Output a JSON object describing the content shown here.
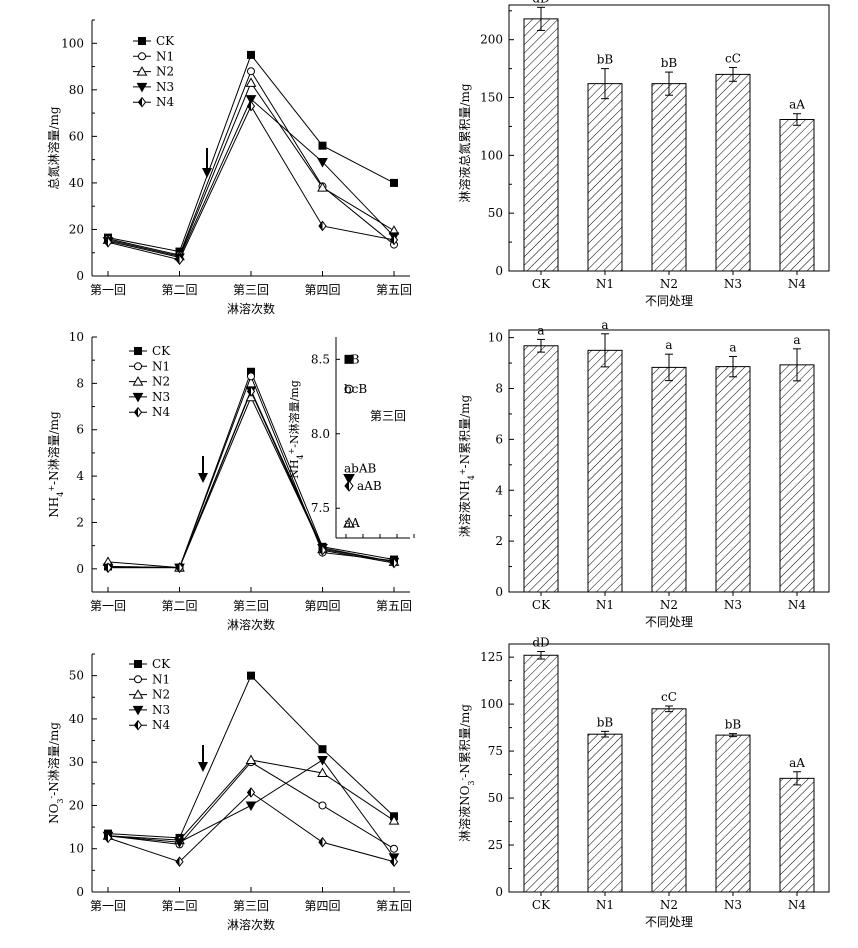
{
  "chart_data": [
    {
      "id": "p1",
      "type": "line",
      "xlabel": "淋溶次数",
      "ylabel": "总氮淋溶量/mg",
      "categories": [
        "第一回",
        "第二回",
        "第三回",
        "第四回",
        "第五回"
      ],
      "ylim": [
        0,
        110
      ],
      "yticks": [
        0,
        20,
        40,
        60,
        80,
        100
      ],
      "series": [
        {
          "name": "CK",
          "marker": "square",
          "values": [
            16.5,
            10.5,
            95,
            56,
            40
          ]
        },
        {
          "name": "N1",
          "marker": "circle",
          "values": [
            16,
            9,
            88,
            38.5,
            13.5
          ]
        },
        {
          "name": "N2",
          "marker": "triangle",
          "values": [
            15.5,
            8.5,
            83,
            38,
            19.5
          ]
        },
        {
          "name": "N3",
          "marker": "triangle-down",
          "values": [
            15,
            8,
            76,
            49,
            17
          ]
        },
        {
          "name": "N4",
          "marker": "diamond",
          "values": [
            14.5,
            7,
            73,
            21.5,
            15.5
          ]
        }
      ],
      "arrow_after_index": 1
    },
    {
      "id": "p2",
      "type": "line",
      "xlabel": "淋溶次数",
      "ylabel": "NH4+-N淋溶量/mg",
      "categories": [
        "第一回",
        "第二回",
        "第三回",
        "第四回",
        "第五回"
      ],
      "ylim": [
        -1,
        10
      ],
      "yticks": [
        0,
        2,
        4,
        6,
        8,
        10
      ],
      "series": [
        {
          "name": "CK",
          "marker": "square",
          "values": [
            0.1,
            0.05,
            8.5,
            0.95,
            0.4
          ]
        },
        {
          "name": "N1",
          "marker": "circle",
          "values": [
            0.1,
            0.05,
            8.3,
            0.7,
            0.35
          ]
        },
        {
          "name": "N2",
          "marker": "triangle",
          "values": [
            0.3,
            0.05,
            7.4,
            0.85,
            0.3
          ]
        },
        {
          "name": "N3",
          "marker": "triangle-down",
          "values": [
            0.05,
            0.05,
            7.7,
            0.9,
            0.3
          ]
        },
        {
          "name": "N4",
          "marker": "diamond",
          "values": [
            0.05,
            0.05,
            7.65,
            0.8,
            0.25
          ]
        }
      ],
      "arrow_after_index": 1,
      "inset": {
        "ylabel": "NH4+-N淋溶量/mg",
        "caption": "第三回",
        "ylim": [
          7.3,
          8.65
        ],
        "yticks": [
          7.5,
          8.0,
          8.5
        ],
        "points": [
          {
            "marker": "square",
            "value": 8.5,
            "label": "cB"
          },
          {
            "marker": "circle",
            "value": 8.3,
            "label": "bcB"
          },
          {
            "marker": "triangle-down",
            "value": 7.7,
            "label": "abAB"
          },
          {
            "marker": "diamond",
            "value": 7.65,
            "label": "aAB"
          },
          {
            "marker": "triangle",
            "value": 7.4,
            "label": "aA"
          }
        ]
      }
    },
    {
      "id": "p3",
      "type": "line",
      "xlabel": "淋溶次数",
      "ylabel": "NO3--N淋溶量/mg",
      "categories": [
        "第一回",
        "第二回",
        "第三回",
        "第四回",
        "第五回"
      ],
      "ylim": [
        0,
        55
      ],
      "yticks": [
        0,
        10,
        20,
        30,
        40,
        50
      ],
      "series": [
        {
          "name": "CK",
          "marker": "square",
          "values": [
            13.5,
            12.5,
            50,
            33,
            17.5
          ]
        },
        {
          "name": "N1",
          "marker": "circle",
          "values": [
            13,
            11,
            30,
            20,
            10
          ]
        },
        {
          "name": "N2",
          "marker": "triangle",
          "values": [
            13,
            12,
            30.5,
            27.5,
            16.5
          ]
        },
        {
          "name": "N3",
          "marker": "triangle-down",
          "values": [
            13,
            11.5,
            20,
            30.5,
            8
          ]
        },
        {
          "name": "N4",
          "marker": "diamond",
          "values": [
            12.5,
            7,
            23,
            11.5,
            7
          ]
        }
      ],
      "arrow_after_index": 1
    },
    {
      "id": "b1",
      "type": "bar",
      "xlabel": "不同处理",
      "ylabel": "淋溶液总氮累积量/mg",
      "categories": [
        "CK",
        "N1",
        "N2",
        "N3",
        "N4"
      ],
      "values": [
        218,
        162,
        162,
        170,
        131
      ],
      "errors": [
        10,
        13,
        10,
        6,
        5
      ],
      "labels": [
        "dD",
        "bB",
        "bB",
        "cC",
        "aA"
      ],
      "ylim": [
        0,
        230
      ],
      "yticks": [
        0,
        50,
        100,
        150,
        200
      ]
    },
    {
      "id": "b2",
      "type": "bar",
      "xlabel": "不同处理",
      "ylabel": "淋溶液NH4+-N累积量/mg",
      "categories": [
        "CK",
        "N1",
        "N2",
        "N3",
        "N4"
      ],
      "values": [
        9.68,
        9.5,
        8.83,
        8.86,
        8.93
      ],
      "errors": [
        0.25,
        0.65,
        0.52,
        0.4,
        0.63
      ],
      "labels": [
        "a",
        "a",
        "a",
        "a",
        "a"
      ],
      "ylim": [
        0,
        10.3
      ],
      "yticks": [
        0,
        2,
        4,
        6,
        8,
        10
      ]
    },
    {
      "id": "b3",
      "type": "bar",
      "xlabel": "不同处理",
      "ylabel": "淋溶液NO3--N累积量/mg",
      "categories": [
        "CK",
        "N1",
        "N2",
        "N3",
        "N4"
      ],
      "values": [
        126,
        84,
        97.5,
        83.5,
        60.5
      ],
      "errors": [
        2,
        1.5,
        1.5,
        0.8,
        3.5
      ],
      "labels": [
        "dD",
        "bB",
        "cC",
        "bB",
        "aA"
      ],
      "ylim": [
        0,
        132
      ],
      "yticks": [
        0,
        25,
        50,
        75,
        100,
        125
      ]
    }
  ]
}
